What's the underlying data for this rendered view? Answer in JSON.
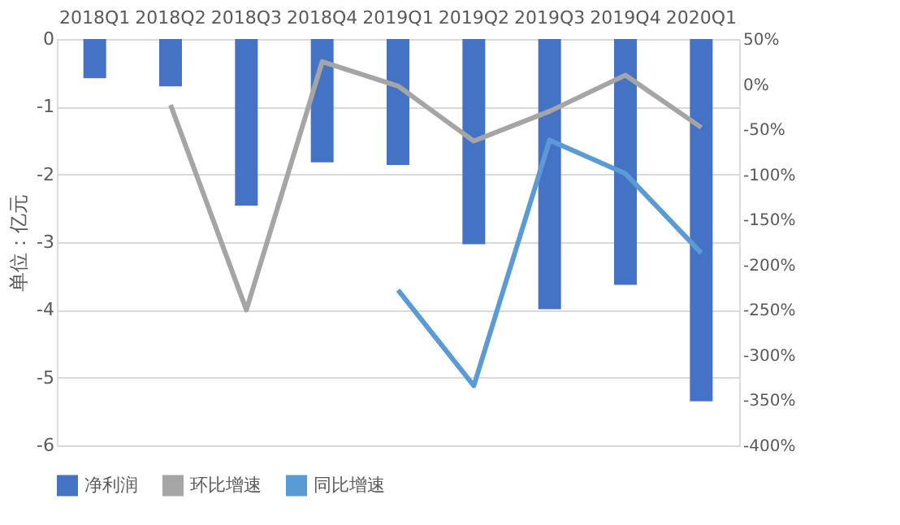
{
  "chart_data": {
    "type": "bar",
    "categories": [
      "2018Q1",
      "2018Q2",
      "2018Q3",
      "2018Q4",
      "2019Q1",
      "2019Q2",
      "2019Q3",
      "2019Q4",
      "2020Q1"
    ],
    "ylabel": "单位：亿元",
    "series": [
      {
        "name": "净利润",
        "color": "#4472c4",
        "values": [
          -0.58,
          -0.7,
          -2.46,
          -1.82,
          -1.86,
          -3.03,
          -3.99,
          -3.63,
          -5.35
        ]
      },
      {
        "name": "环比增速",
        "type": "line",
        "axis": "y2",
        "color": "#a5a5a5",
        "values": [
          null,
          -23,
          -250,
          25,
          -2,
          -63,
          -30,
          10,
          -48
        ]
      },
      {
        "name": "同比增速",
        "type": "line",
        "axis": "y2",
        "color": "#5b9bd5",
        "values": [
          null,
          null,
          null,
          null,
          -228,
          -334,
          -62,
          -99,
          -187
        ]
      }
    ],
    "ylim": [
      -6,
      0
    ],
    "yticks": [
      0,
      -1,
      -2,
      -3,
      -4,
      -5,
      -6
    ],
    "y2lim": [
      -400,
      50
    ],
    "y2ticks": [
      {
        "value": 50,
        "label": "50%"
      },
      {
        "value": 0,
        "label": "0%"
      },
      {
        "value": -50,
        "label": "-50%"
      },
      {
        "value": -100,
        "label": "-100%"
      },
      {
        "value": -150,
        "label": "-150%"
      },
      {
        "value": -200,
        "label": "-200%"
      },
      {
        "value": -250,
        "label": "-250%"
      },
      {
        "value": -300,
        "label": "-300%"
      },
      {
        "value": -350,
        "label": "-350%"
      },
      {
        "value": -400,
        "label": "-400%"
      }
    ],
    "grid": "y",
    "legend": "bottom"
  }
}
